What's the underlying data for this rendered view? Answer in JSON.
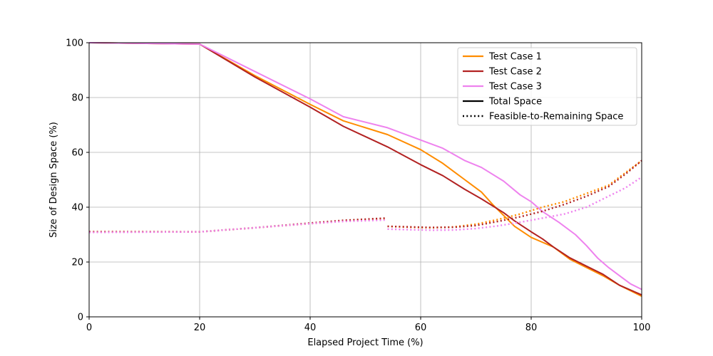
{
  "chart_data": {
    "type": "line",
    "title": "",
    "xlabel": "Elapsed Project Time (%)",
    "ylabel": "Size of Design Space (%)",
    "xlim": [
      0,
      100
    ],
    "ylim": [
      0,
      100
    ],
    "xticks": [
      "0",
      "20",
      "40",
      "60",
      "80",
      "100"
    ],
    "yticks": [
      "0",
      "20",
      "40",
      "60",
      "80",
      "100"
    ],
    "grid": true,
    "legend_position": "top-right",
    "series": [
      {
        "name": "Test Case 1",
        "color": "#ff8c00",
        "style": "solid",
        "points": [
          [
            0,
            100
          ],
          [
            20,
            99.5
          ],
          [
            30,
            88
          ],
          [
            40,
            77.5
          ],
          [
            46,
            71.5
          ],
          [
            54,
            66.5
          ],
          [
            60,
            61
          ],
          [
            64,
            56
          ],
          [
            68,
            50
          ],
          [
            71,
            45.5
          ],
          [
            73,
            41
          ],
          [
            75,
            37
          ],
          [
            77,
            33
          ],
          [
            80,
            29
          ],
          [
            84,
            25.5
          ],
          [
            87,
            21
          ],
          [
            90,
            18
          ],
          [
            93,
            15
          ],
          [
            96,
            11.5
          ],
          [
            100,
            7.5
          ]
        ]
      },
      {
        "name": "Test Case 2",
        "color": "#b22222",
        "style": "solid",
        "points": [
          [
            0,
            100
          ],
          [
            20,
            99.5
          ],
          [
            30,
            87.5
          ],
          [
            40,
            76.5
          ],
          [
            46,
            69.5
          ],
          [
            54,
            62
          ],
          [
            60,
            55.5
          ],
          [
            64,
            51.5
          ],
          [
            68,
            46.5
          ],
          [
            71,
            43
          ],
          [
            75,
            38
          ],
          [
            77,
            35
          ],
          [
            80,
            31
          ],
          [
            82,
            28.5
          ],
          [
            84,
            25.5
          ],
          [
            87,
            21.5
          ],
          [
            90,
            18.5
          ],
          [
            93,
            15.5
          ],
          [
            96,
            11.5
          ],
          [
            100,
            8
          ]
        ]
      },
      {
        "name": "Test Case 3",
        "color": "#ee82ee",
        "style": "solid",
        "points": [
          [
            0,
            100
          ],
          [
            20,
            99.5
          ],
          [
            25,
            94.5
          ],
          [
            33,
            86.5
          ],
          [
            40,
            79.5
          ],
          [
            46,
            73
          ],
          [
            54,
            69
          ],
          [
            60,
            64.5
          ],
          [
            64,
            61.5
          ],
          [
            68,
            57
          ],
          [
            71,
            54.5
          ],
          [
            75,
            49.5
          ],
          [
            78,
            44.5
          ],
          [
            80,
            42
          ],
          [
            82,
            38.5
          ],
          [
            85,
            34.5
          ],
          [
            88,
            30
          ],
          [
            90,
            26
          ],
          [
            92,
            21.5
          ],
          [
            94,
            18
          ],
          [
            96,
            15
          ],
          [
            98,
            12
          ],
          [
            100,
            10
          ]
        ]
      },
      {
        "name": "Test Case 1",
        "color": "#ff8c00",
        "style": "dotted",
        "segments": [
          [
            [
              0,
              31
            ],
            [
              20,
              31
            ],
            [
              30,
              32.5
            ],
            [
              40,
              34
            ],
            [
              46,
              35
            ],
            [
              53.5,
              35.8
            ]
          ],
          [
            [
              54,
              33
            ],
            [
              58,
              32.7
            ],
            [
              62,
              32.5
            ],
            [
              66,
              32.8
            ],
            [
              70,
              33.8
            ],
            [
              74,
              35.5
            ],
            [
              78,
              37.5
            ],
            [
              82,
              40
            ],
            [
              86,
              42
            ],
            [
              90,
              45
            ],
            [
              94,
              48
            ],
            [
              97,
              52.5
            ],
            [
              100,
              57
            ]
          ]
        ]
      },
      {
        "name": "Test Case 2",
        "color": "#b22222",
        "style": "dotted",
        "segments": [
          [
            [
              0,
              31
            ],
            [
              20,
              31
            ],
            [
              30,
              32.5
            ],
            [
              40,
              34.2
            ],
            [
              46,
              35.2
            ],
            [
              53.5,
              36
            ]
          ],
          [
            [
              54,
              33
            ],
            [
              58,
              32.8
            ],
            [
              62,
              32.6
            ],
            [
              66,
              32.7
            ],
            [
              70,
              33.3
            ],
            [
              74,
              34.8
            ],
            [
              78,
              36.5
            ],
            [
              82,
              38.5
            ],
            [
              86,
              41
            ],
            [
              90,
              44
            ],
            [
              94,
              47.5
            ],
            [
              97,
              52
            ],
            [
              100,
              57
            ]
          ]
        ]
      },
      {
        "name": "Test Case 3",
        "color": "#ee82ee",
        "style": "dotted",
        "segments": [
          [
            [
              0,
              30.8
            ],
            [
              20,
              31
            ],
            [
              30,
              32.5
            ],
            [
              40,
              34
            ],
            [
              46,
              34.8
            ],
            [
              53.5,
              35.3
            ]
          ],
          [
            [
              54,
              32
            ],
            [
              58,
              31.8
            ],
            [
              62,
              31.6
            ],
            [
              66,
              31.7
            ],
            [
              70,
              32.2
            ],
            [
              74,
              33.2
            ],
            [
              78,
              34.5
            ],
            [
              82,
              36
            ],
            [
              86,
              37.5
            ],
            [
              90,
              40
            ],
            [
              94,
              44
            ],
            [
              97,
              47
            ],
            [
              100,
              51
            ]
          ]
        ]
      }
    ],
    "legend": [
      {
        "label": "Test Case 1",
        "color": "#ff8c00",
        "style": "solid"
      },
      {
        "label": "Test Case 2",
        "color": "#b22222",
        "style": "solid"
      },
      {
        "label": "Test Case 3",
        "color": "#ee82ee",
        "style": "solid"
      },
      {
        "label": "Total Space",
        "color": "#000000",
        "style": "solid"
      },
      {
        "label": "Feasible-to-Remaining Space",
        "color": "#000000",
        "style": "dotted"
      }
    ]
  }
}
